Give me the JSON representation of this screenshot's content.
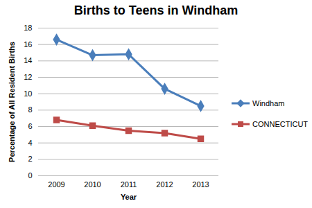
{
  "chart_data": {
    "type": "line",
    "title": "Births to Teens in Windham",
    "xlabel": "Year",
    "ylabel": "Percentage of All Resident Births",
    "categories": [
      "2009",
      "2010",
      "2011",
      "2012",
      "2013"
    ],
    "series": [
      {
        "name": "Windham",
        "color": "#4a7ebb",
        "marker": "diamond",
        "values": [
          16.6,
          14.7,
          14.8,
          10.6,
          8.5
        ]
      },
      {
        "name": "CONNECTICUT",
        "color": "#be4b48",
        "marker": "square",
        "values": [
          6.8,
          6.1,
          5.5,
          5.2,
          4.5
        ]
      }
    ],
    "ylim": [
      0,
      18
    ],
    "yticks": [
      0,
      2,
      4,
      6,
      8,
      10,
      12,
      14,
      16,
      18
    ],
    "grid": true,
    "legend": "right"
  }
}
